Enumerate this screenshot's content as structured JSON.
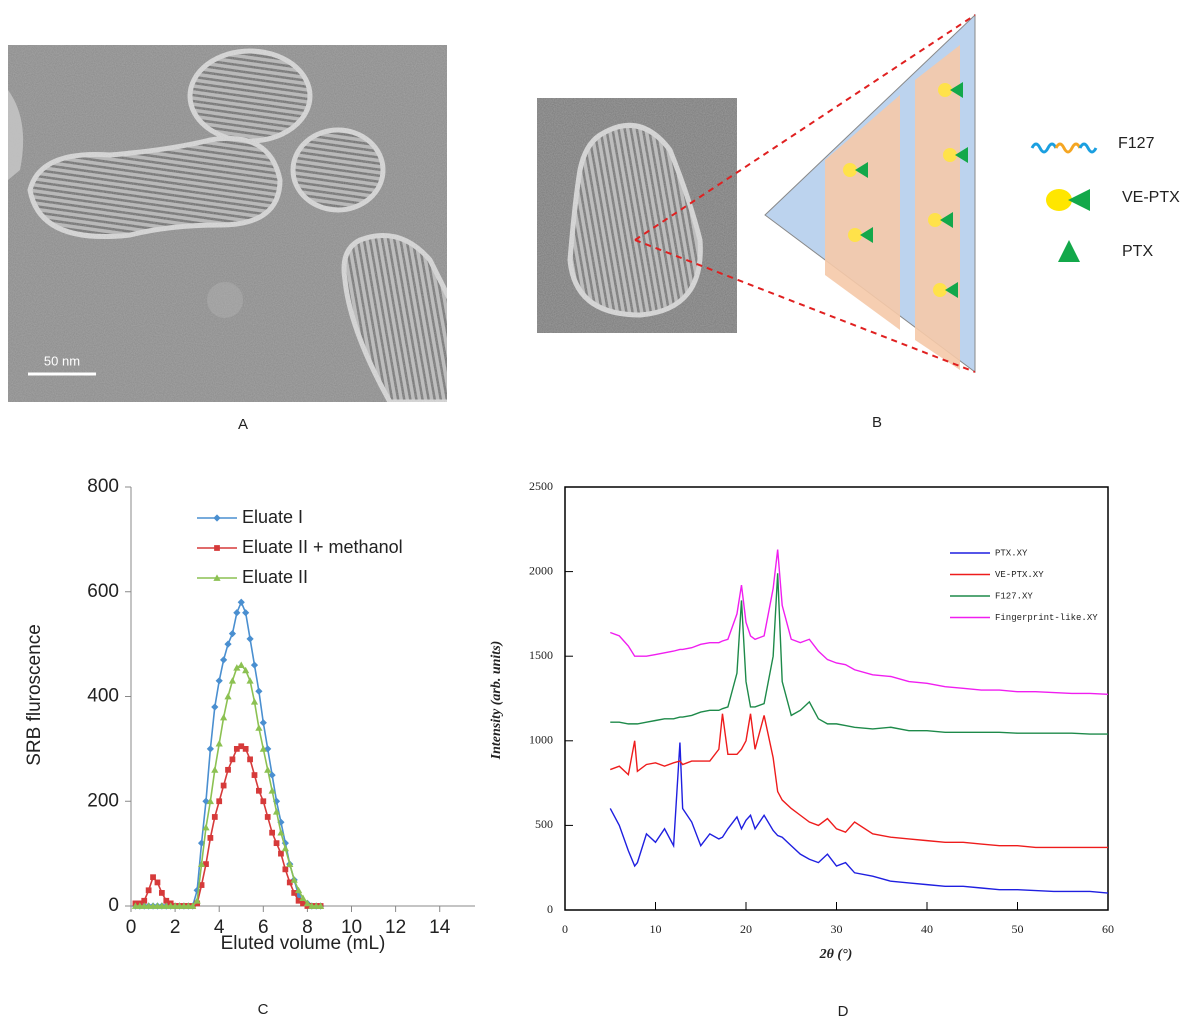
{
  "panels": [
    {
      "label": "A",
      "scale_bar": "50 nm"
    },
    {
      "label": "B",
      "legend": [
        "F127",
        "VE-PTX",
        "PTX"
      ]
    }
  ],
  "chart_data": [
    {
      "type": "line",
      "panel_label": "C",
      "xlabel": "Eluted volume (mL)",
      "ylabel": "SRB fluroscence",
      "xlim": [
        0,
        15.6
      ],
      "xticks": [
        0,
        2,
        4,
        6,
        8,
        10,
        12,
        14
      ],
      "ylim": [
        0,
        800
      ],
      "yticks": [
        0,
        200,
        400,
        600,
        800
      ],
      "grid": false,
      "frame": false,
      "legend_position": "upper center",
      "x": [
        0.2,
        0.4,
        0.6,
        0.8,
        1.0,
        1.2,
        1.4,
        1.6,
        1.8,
        2.0,
        2.2,
        2.4,
        2.6,
        2.8,
        3.0,
        3.2,
        3.4,
        3.6,
        3.8,
        4.0,
        4.2,
        4.4,
        4.6,
        4.8,
        5.0,
        5.2,
        5.4,
        5.6,
        5.8,
        6.0,
        6.2,
        6.4,
        6.6,
        6.8,
        7.0,
        7.2,
        7.4,
        7.6,
        7.8,
        8.0,
        8.2,
        8.4,
        8.6
      ],
      "series": [
        {
          "name": "Eluate  I",
          "color": "#4a8fd0",
          "marker": "diamond",
          "values": [
            0,
            0,
            0,
            0,
            0,
            0,
            0,
            0,
            0,
            0,
            0,
            0,
            0,
            0,
            30,
            120,
            200,
            300,
            380,
            430,
            470,
            500,
            520,
            560,
            580,
            560,
            510,
            460,
            410,
            350,
            300,
            250,
            200,
            160,
            120,
            80,
            50,
            20,
            10,
            5,
            0,
            0,
            0
          ]
        },
        {
          "name": "Eluate II + methanol",
          "color": "#d63a3a",
          "marker": "square",
          "values": [
            5,
            5,
            10,
            30,
            55,
            45,
            25,
            10,
            5,
            0,
            0,
            0,
            0,
            0,
            5,
            40,
            80,
            130,
            170,
            200,
            230,
            260,
            280,
            300,
            305,
            300,
            280,
            250,
            220,
            200,
            170,
            140,
            120,
            100,
            70,
            45,
            25,
            10,
            5,
            0,
            0,
            0,
            0
          ]
        },
        {
          "name": "Eluate II",
          "color": "#8cc152",
          "marker": "triangle",
          "values": [
            0,
            0,
            0,
            0,
            0,
            0,
            0,
            0,
            0,
            0,
            0,
            0,
            0,
            0,
            10,
            80,
            150,
            200,
            260,
            310,
            360,
            400,
            430,
            455,
            460,
            450,
            430,
            390,
            340,
            300,
            260,
            220,
            180,
            140,
            110,
            80,
            50,
            30,
            15,
            5,
            0,
            0,
            0
          ]
        }
      ]
    },
    {
      "type": "line",
      "panel_label": "D",
      "xlabel": "2θ (°)",
      "ylabel": "Intensity (arb. units)",
      "xlim": [
        0,
        60
      ],
      "xticks": [
        0,
        10,
        20,
        30,
        40,
        50,
        60
      ],
      "ylim": [
        0,
        2500
      ],
      "yticks": [
        0,
        500,
        1000,
        1500,
        2000,
        2500
      ],
      "grid": false,
      "frame": true,
      "legend_position": "upper right",
      "x": [
        5,
        6,
        7,
        7.7,
        8,
        9,
        10,
        11,
        12,
        12.7,
        13,
        14,
        15,
        16,
        17,
        17.4,
        18,
        19,
        19.5,
        20,
        20.5,
        21,
        22,
        23,
        23.5,
        24,
        25,
        26,
        27,
        28,
        29,
        30,
        31,
        32,
        34,
        36,
        38,
        40,
        42,
        44,
        46,
        48,
        50,
        52,
        54,
        56,
        58,
        60
      ],
      "series": [
        {
          "name": "PTX.XY",
          "color": "#1f1fe0",
          "values": [
            600,
            500,
            350,
            260,
            280,
            450,
            400,
            480,
            380,
            990,
            600,
            520,
            380,
            450,
            420,
            430,
            480,
            550,
            480,
            530,
            560,
            480,
            560,
            470,
            440,
            430,
            380,
            330,
            300,
            280,
            330,
            260,
            280,
            220,
            200,
            170,
            160,
            150,
            140,
            140,
            130,
            120,
            120,
            115,
            110,
            110,
            110,
            100
          ]
        },
        {
          "name": "VE-PTX.XY",
          "color": "#ee1c1c",
          "values": [
            830,
            850,
            800,
            1000,
            820,
            860,
            870,
            850,
            870,
            880,
            860,
            880,
            880,
            880,
            950,
            1160,
            920,
            920,
            950,
            1000,
            1160,
            950,
            1150,
            900,
            700,
            650,
            600,
            560,
            520,
            500,
            540,
            480,
            460,
            520,
            450,
            430,
            420,
            410,
            400,
            400,
            390,
            380,
            380,
            370,
            370,
            370,
            370,
            370
          ]
        },
        {
          "name": "F127.XY",
          "color": "#1e8a4a",
          "values": [
            1110,
            1110,
            1100,
            1100,
            1100,
            1110,
            1120,
            1130,
            1130,
            1140,
            1140,
            1150,
            1170,
            1180,
            1180,
            1190,
            1200,
            1400,
            1830,
            1350,
            1200,
            1200,
            1220,
            1500,
            1990,
            1350,
            1150,
            1180,
            1230,
            1130,
            1100,
            1100,
            1090,
            1080,
            1070,
            1080,
            1060,
            1060,
            1050,
            1050,
            1050,
            1050,
            1045,
            1045,
            1045,
            1045,
            1040,
            1040
          ]
        },
        {
          "name": "Fingerprint-like.XY",
          "color": "#f01ef0",
          "values": [
            1640,
            1620,
            1560,
            1500,
            1500,
            1500,
            1510,
            1520,
            1530,
            1540,
            1540,
            1550,
            1570,
            1580,
            1580,
            1590,
            1600,
            1750,
            1920,
            1700,
            1620,
            1600,
            1620,
            1900,
            2130,
            1800,
            1600,
            1580,
            1600,
            1530,
            1480,
            1460,
            1450,
            1420,
            1390,
            1380,
            1350,
            1340,
            1320,
            1310,
            1300,
            1300,
            1290,
            1290,
            1285,
            1280,
            1280,
            1275
          ]
        }
      ]
    }
  ]
}
